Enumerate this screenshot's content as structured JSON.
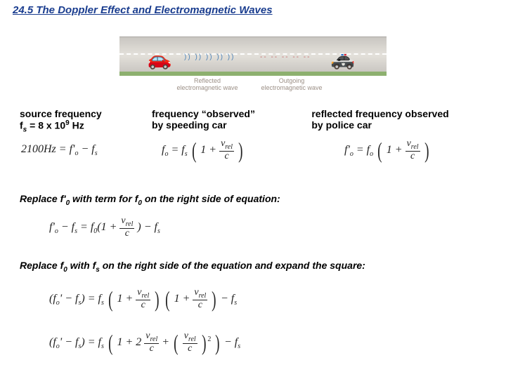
{
  "title": "24.5 The Doppler Effect and Electromagnetic Waves",
  "figure": {
    "road_color": "#d6d3cd",
    "grass_color": "#8db06f",
    "red_car_color": "#c43a2c",
    "blue_car_color": "#2d5fb8",
    "label_reflected": "Reflected electromagnetic wave",
    "label_outgoing": "Outgoing electromagnetic wave"
  },
  "columns": {
    "col1_line1": "source frequency",
    "col1_line2_html": "f<sub>s</sub> = 8 x 10<sup>9</sup> Hz",
    "col2_line1": "frequency “observed”",
    "col2_line2": "by speeding car",
    "col3_line1": "reflected frequency observed",
    "col3_line2": "by police car"
  },
  "equations": {
    "eq1_html": "2100Hz = f'<sub>o</sub> − f<sub>s</sub>",
    "eq2_prefix_html": "f<sub>o</sub> = f<sub>s</sub>",
    "eq3_prefix_html": "f'<sub>o</sub> = f<sub>o</sub>",
    "frac_num_html": "v<sub>rel</sub>",
    "frac_den": "c",
    "one_plus": "1 + "
  },
  "steps": {
    "step1_html": "Replace f'<sub>0</sub> with term for f<sub>0</sub> on the right side of equation:",
    "step2_html": "Replace f<sub>0</sub> with f<sub>s</sub> on the right side of the equation and expand the square:",
    "eqs1_lhs_html": "f'<sub>o</sub> − f<sub>s</sub> = f<sub>0</sub>(1 + ",
    "eqs1_tail_html": ") − f<sub>s</sub>",
    "eqs2_lhs_html": "(f<sub>o</sub>' − f<sub>s</sub>) = f<sub>s</sub>",
    "eqs2_tail_html": " − f<sub>s</sub>",
    "eqs3_lhs_html": "(f<sub>o</sub>' − f<sub>s</sub>) = f<sub>s</sub>",
    "eqs3_mid": "1 + 2",
    "eqs3_plus": " + ",
    "eqs3_sq_num_html": "(v<sub>rel</sub>)",
    "eqs3_tail_html": " − f<sub>s</sub>"
  }
}
